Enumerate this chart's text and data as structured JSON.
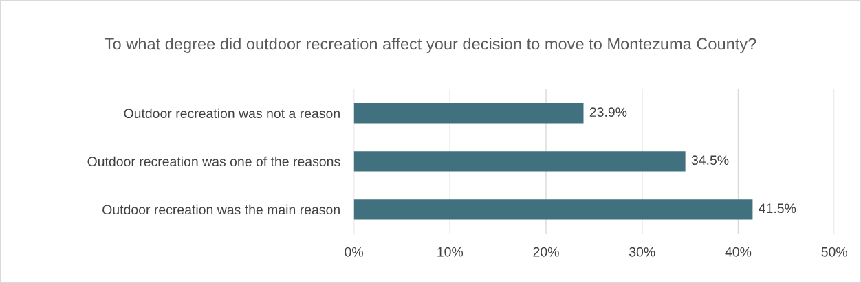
{
  "chart_data": {
    "type": "bar",
    "orientation": "horizontal",
    "title": "To what degree did outdoor recreation affect your decision to move to Montezuma County?",
    "categories": [
      "Outdoor recreation was not a reason",
      "Outdoor recreation was one of the reasons",
      "Outdoor recreation was the main reason"
    ],
    "values": [
      23.9,
      34.5,
      41.5
    ],
    "value_labels": [
      "23.9%",
      "34.5%",
      "41.5%"
    ],
    "color": "#41717f",
    "xlim": [
      0,
      50
    ],
    "xticks": [
      {
        "value": 0,
        "label": "0%"
      },
      {
        "value": 10,
        "label": "10%"
      },
      {
        "value": 20,
        "label": "20%"
      },
      {
        "value": 30,
        "label": "30%"
      },
      {
        "value": 40,
        "label": "40%"
      },
      {
        "value": 50,
        "label": "50%"
      }
    ],
    "grid": "x"
  }
}
